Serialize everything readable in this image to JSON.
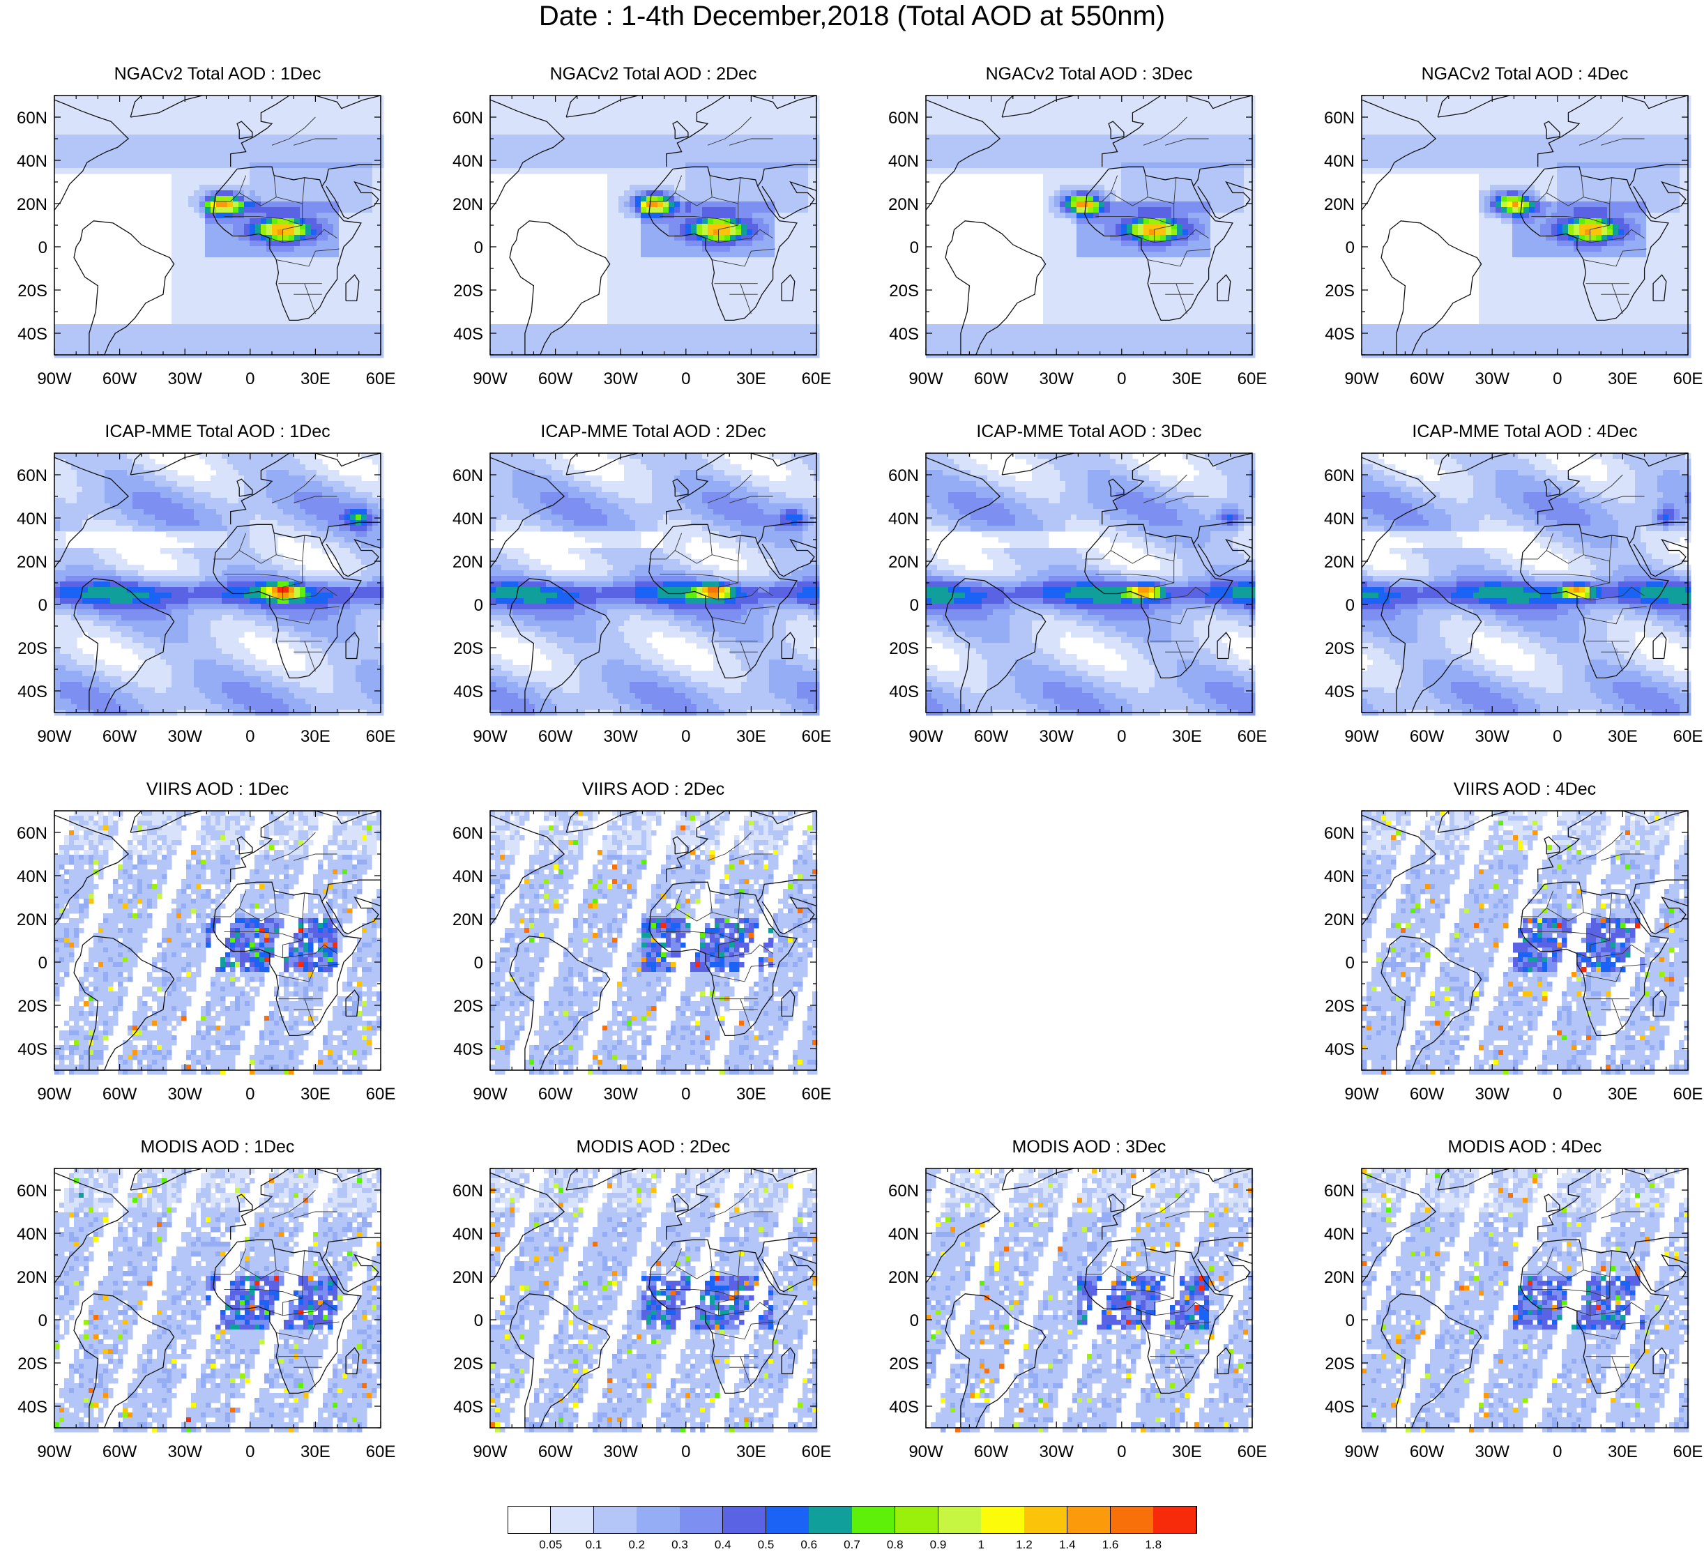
{
  "title": "Date : 1-4th December,2018 (Total AOD at 550nm)",
  "map_extent": {
    "lon": [
      -90,
      60
    ],
    "lat": [
      -50,
      70
    ]
  },
  "lon_ticks": [
    "90W",
    "60W",
    "30W",
    "0",
    "30E",
    "60E"
  ],
  "lat_ticks": [
    "60N",
    "40N",
    "20N",
    "0",
    "20S",
    "40S"
  ],
  "rows": [
    {
      "product": "NGACv2",
      "style": "model",
      "panels": [
        {
          "title": "NGACv2 Total AOD : 1Dec",
          "visible": true
        },
        {
          "title": "NGACv2 Total AOD : 2Dec",
          "visible": true
        },
        {
          "title": "NGACv2 Total AOD : 3Dec",
          "visible": true
        },
        {
          "title": "NGACv2 Total AOD : 4Dec",
          "visible": true
        }
      ]
    },
    {
      "product": "ICAP-MME",
      "style": "ensemble",
      "panels": [
        {
          "title": "ICAP-MME Total AOD : 1Dec",
          "visible": true
        },
        {
          "title": "ICAP-MME Total AOD : 2Dec",
          "visible": true
        },
        {
          "title": "ICAP-MME Total AOD : 3Dec",
          "visible": true
        },
        {
          "title": "ICAP-MME Total AOD : 4Dec",
          "visible": true
        }
      ]
    },
    {
      "product": "VIIRS",
      "style": "satellite",
      "panels": [
        {
          "title": "VIIRS AOD : 1Dec",
          "visible": true
        },
        {
          "title": "VIIRS AOD : 2Dec",
          "visible": true
        },
        {
          "title": "",
          "visible": false
        },
        {
          "title": "VIIRS AOD : 4Dec",
          "visible": true
        }
      ]
    },
    {
      "product": "MODIS",
      "style": "satellite",
      "panels": [
        {
          "title": "MODIS AOD : 1Dec",
          "visible": true
        },
        {
          "title": "MODIS AOD : 2Dec",
          "visible": true
        },
        {
          "title": "MODIS AOD : 3Dec",
          "visible": true
        },
        {
          "title": "MODIS AOD : 4Dec",
          "visible": true
        }
      ]
    }
  ],
  "colorbar": {
    "labels": [
      "0.05",
      "0.1",
      "0.2",
      "0.3",
      "0.4",
      "0.5",
      "0.6",
      "0.7",
      "0.8",
      "0.9",
      "1",
      "1.2",
      "1.4",
      "1.6",
      "1.8"
    ],
    "colors": [
      "#ffffff",
      "#d8e2fb",
      "#b4c6f7",
      "#95adf5",
      "#7d8ff0",
      "#5a63e3",
      "#1a63f5",
      "#119f9c",
      "#5ff00a",
      "#9af00a",
      "#c6f542",
      "#fbfb0a",
      "#fbc40a",
      "#fb9a0a",
      "#f7700a",
      "#f72b0a"
    ]
  }
}
